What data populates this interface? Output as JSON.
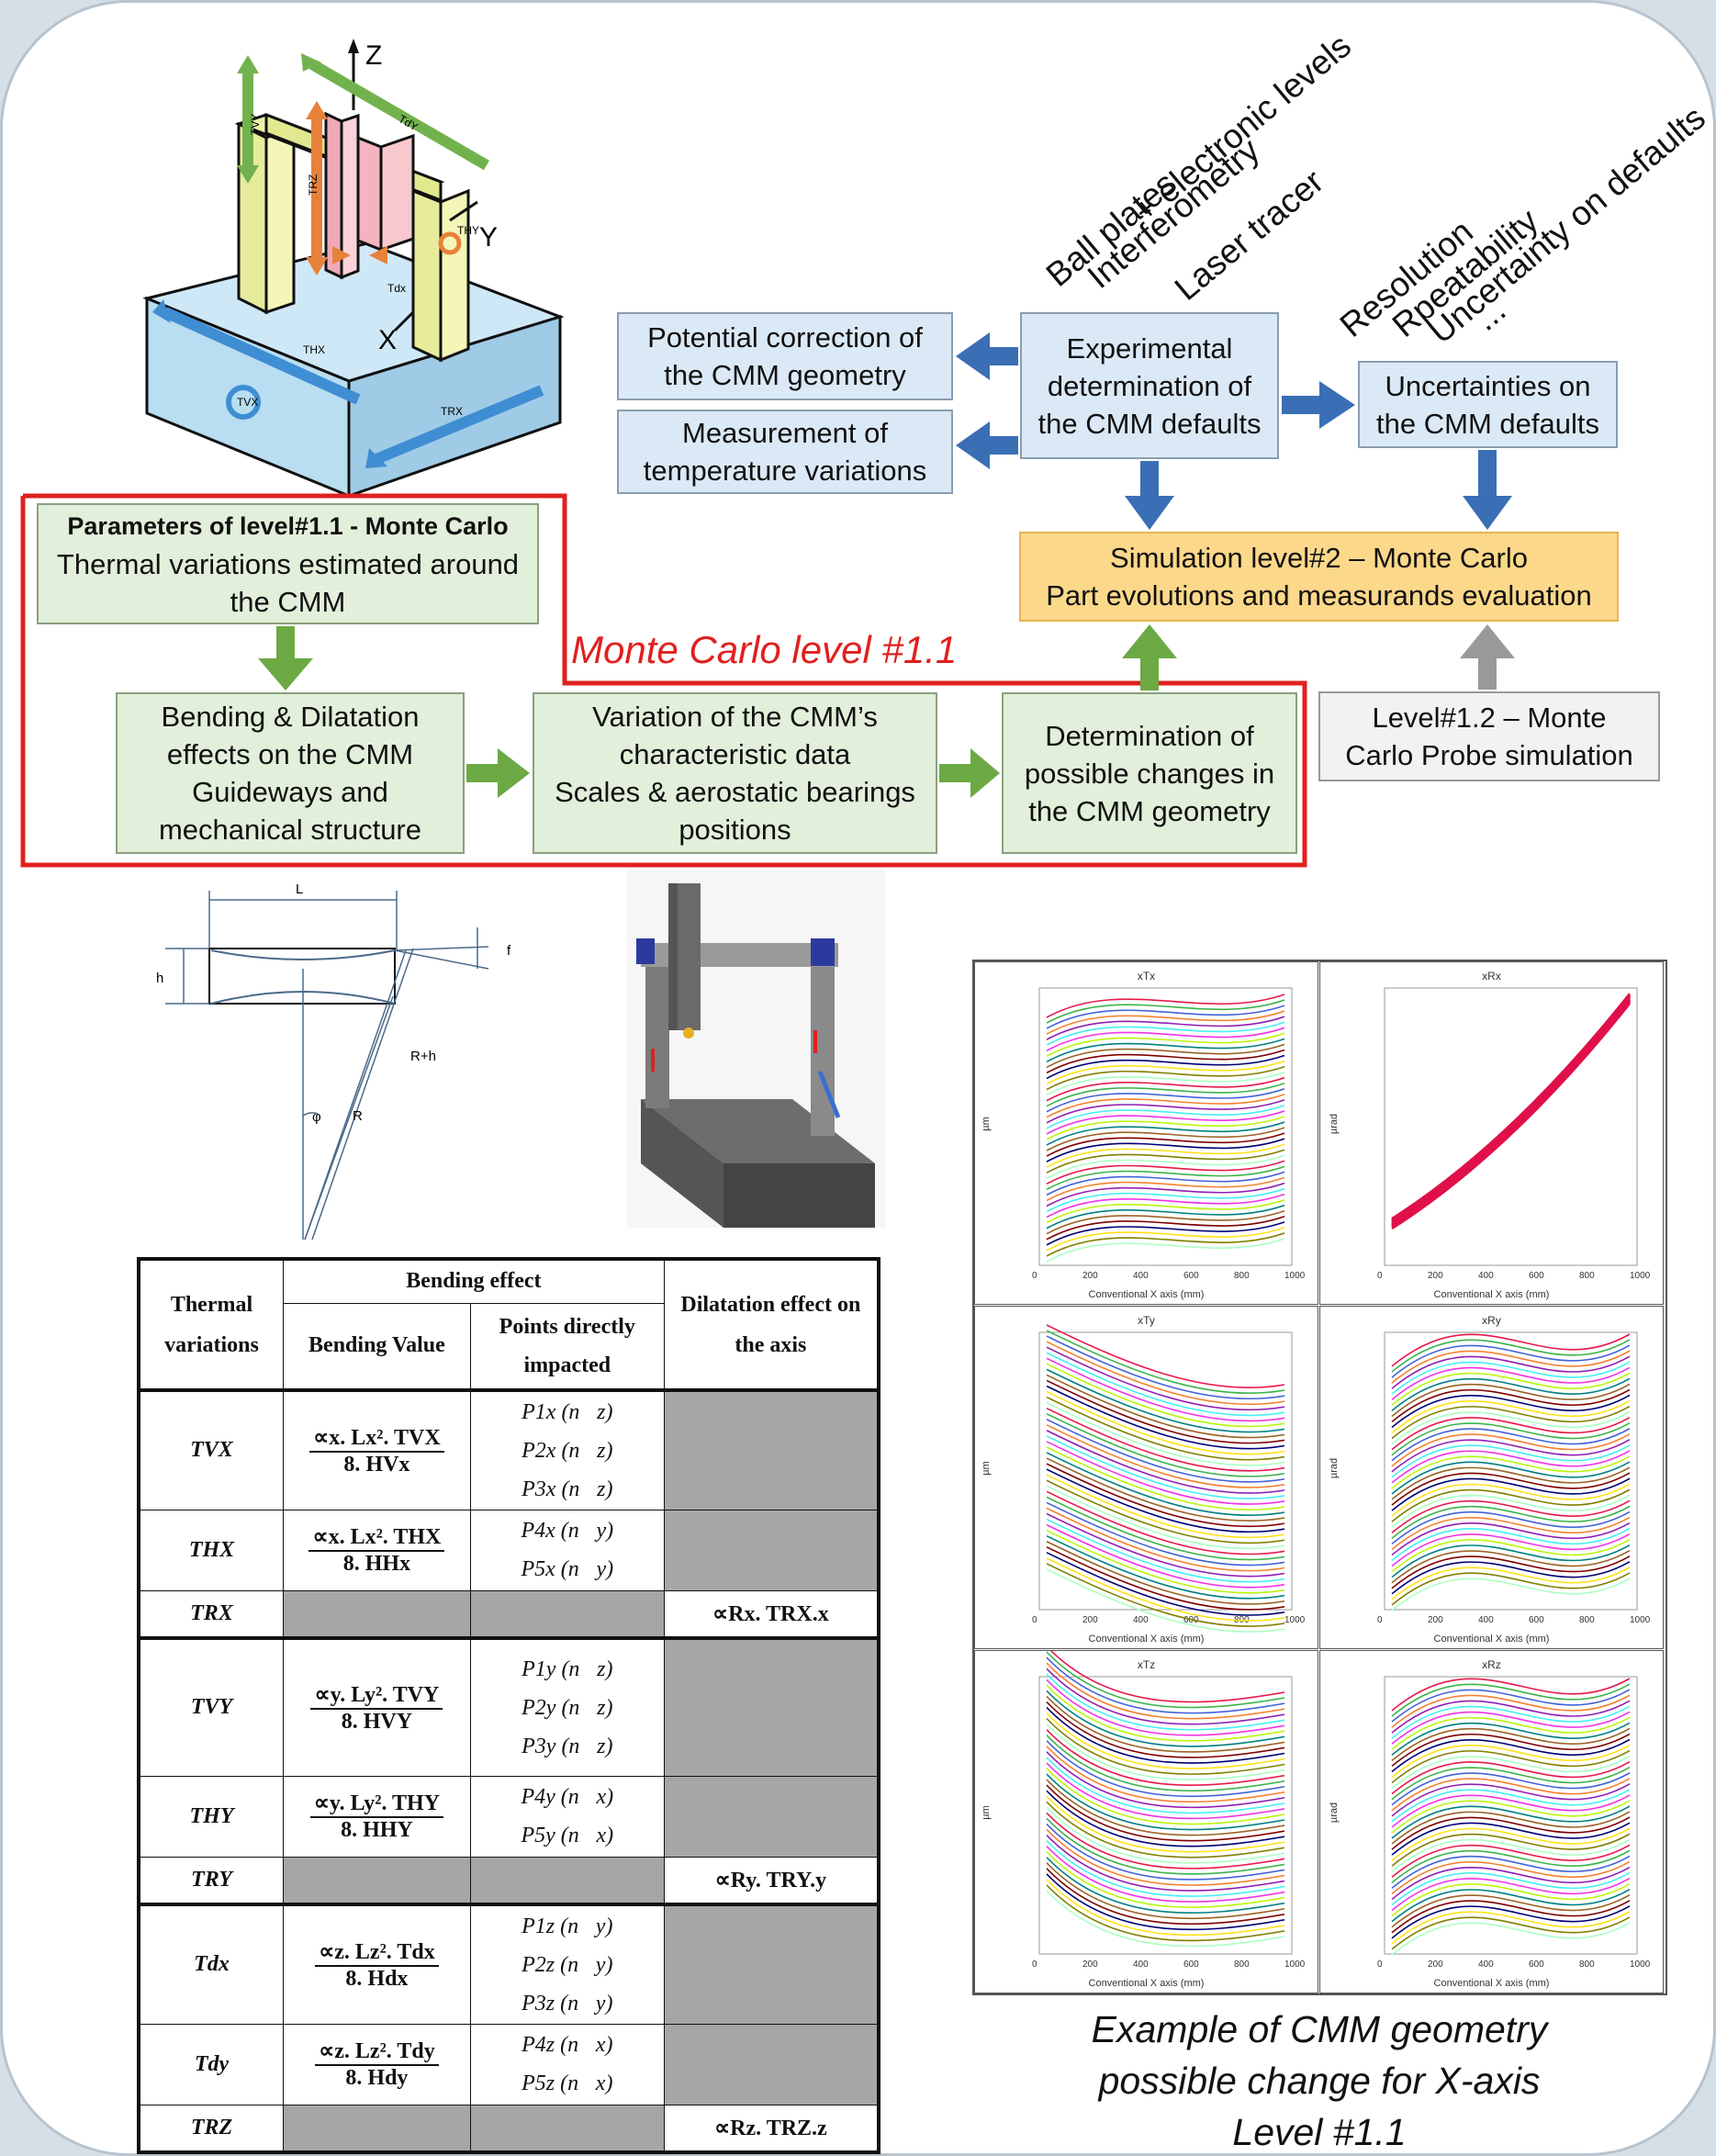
{
  "cmm_labels": {
    "axis_z": "Z",
    "axis_y": "Y",
    "axis_x": "X",
    "tvy": "TVY",
    "tdy": "TdY",
    "trz": "TRZ",
    "tdx": "Tdx",
    "thy": "THY",
    "thx": "THX",
    "tvx": "TVX",
    "trx": "TRX"
  },
  "rotated_labels": {
    "group1": [
      "Ball plates",
      "Interferometry",
      "+ electronic levels",
      "Laser tracer"
    ],
    "group2": [
      "Resolution",
      "Rpeatability",
      "Uncertainty on defaults",
      "..."
    ]
  },
  "boxes": {
    "potential_correction": "Potential correction of the CMM geometry",
    "measurement_temp": "Measurement of temperature variations",
    "experimental": "Experimental determination of the CMM defaults",
    "uncertainties": "Uncertainties on the CMM defaults",
    "simulation_line1": "Simulation level#2 – Monte Carlo",
    "simulation_line2": "Part evolutions and measurands evaluation",
    "params_bold": "Parameters of level#1.1 - Monte Carlo",
    "params_text": "Thermal variations estimated around the CMM",
    "bending": "Bending & Dilatation effects on the CMM Guideways and mechanical structure",
    "variation_line1": "Variation of the CMM’s characteristic data",
    "variation_line2": "Scales & aerostatic bearings positions",
    "determination": "Determination of possible changes in the CMM geometry",
    "level12": "Level#1.2 – Monte Carlo Probe simulation"
  },
  "monte_carlo_label": "Monte Carlo level #1.1",
  "bending_diagram": {
    "L": "L",
    "h": "h",
    "f": "f",
    "Rh": "R+h",
    "R": "R",
    "phi": "φ"
  },
  "table": {
    "col_thermal": "Thermal variations",
    "col_bending_effect": "Bending effect",
    "col_bending_value": "Bending Value",
    "col_points": "Points directly impacted",
    "col_dilatation": "Dilatation effect on the axis",
    "rows": [
      {
        "name": "TVX",
        "num": "∝x. Lx². TVX",
        "den": "8. HVx",
        "points": [
          "P1x (n⃗z)",
          "P2x (n⃗z)",
          "P3x (n⃗z)"
        ],
        "dil": ""
      },
      {
        "name": "THX",
        "num": "∝x. Lx². THX",
        "den": "8. HHx",
        "points": [
          "P4x (n⃗y)",
          "P5x (n⃗y)"
        ],
        "dil": ""
      },
      {
        "name": "TRX",
        "num": "",
        "den": "",
        "points": [],
        "dil": "∝Rx. TRX.x"
      },
      {
        "name": "TVY",
        "num": "∝y. Ly². TVY",
        "den": "8. HVY",
        "points": [
          "P1y (n⃗z)",
          "P2y (n⃗z)",
          "P3y (n⃗z)"
        ],
        "dil": ""
      },
      {
        "name": "THY",
        "num": "∝y. Ly². THY",
        "den": "8. HHY",
        "points": [
          "P4y (n⃗x)",
          "P5y (n⃗x)"
        ],
        "dil": ""
      },
      {
        "name": "TRY",
        "num": "",
        "den": "",
        "points": [],
        "dil": "∝Ry. TRY.y"
      },
      {
        "name": "Tdx",
        "num": "∝z. Lz². Tdx",
        "den": "8. Hdx",
        "points": [
          "P1z (n⃗y)",
          "P2z (n⃗y)",
          "P3z (n⃗y)"
        ],
        "dil": ""
      },
      {
        "name": "Tdy",
        "num": "∝z. Lz². Tdy",
        "den": "8. Hdy",
        "points": [
          "P4z (n⃗x)",
          "P5z (n⃗x)"
        ],
        "dil": ""
      },
      {
        "name": "TRZ",
        "num": "",
        "den": "",
        "points": [],
        "dil": "∝Rz. TRZ.z"
      }
    ]
  },
  "plots": [
    {
      "title": "xTx",
      "ylabel": "µm",
      "xlabel": "Conventional X axis (mm)"
    },
    {
      "title": "xRx",
      "ylabel": "µrad",
      "xlabel": "Conventional X axis (mm)"
    },
    {
      "title": "xTy",
      "ylabel": "µm",
      "xlabel": "Conventional X axis (mm)"
    },
    {
      "title": "xRy",
      "ylabel": "µrad",
      "xlabel": "Conventional X axis (mm)"
    },
    {
      "title": "xTz",
      "ylabel": "µm",
      "xlabel": "Conventional X axis (mm)"
    },
    {
      "title": "xRz",
      "ylabel": "µrad",
      "xlabel": "Conventional X axis (mm)"
    }
  ],
  "plot_ticks_x": [
    "0",
    "200",
    "400",
    "600",
    "800",
    "1000"
  ],
  "caption": [
    "Example of CMM geometry",
    "possible change for X-axis",
    "Level #1.1"
  ]
}
